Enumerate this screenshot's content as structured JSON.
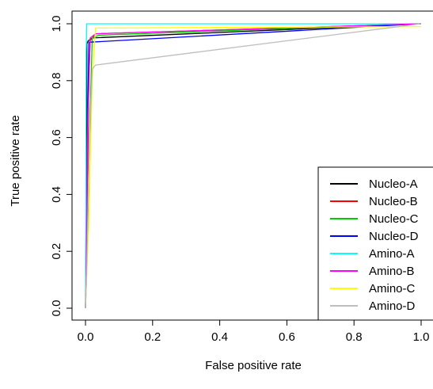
{
  "chart_data": {
    "type": "line",
    "title": "",
    "xlabel": "False positive rate",
    "ylabel": "True positive rate",
    "xlim": [
      0,
      1
    ],
    "ylim": [
      0,
      1
    ],
    "xticks": [
      "0.0",
      "0.2",
      "0.4",
      "0.6",
      "0.8",
      "1.0"
    ],
    "yticks": [
      "0.0",
      "0.2",
      "0.4",
      "0.6",
      "0.8",
      "1.0"
    ],
    "grid": false,
    "legend_position": "bottom-right",
    "series": [
      {
        "name": "Nucleo-A",
        "color": "#000000",
        "x": [
          0,
          0.002,
          0.004,
          0.004,
          0.008,
          0.02,
          1.0
        ],
        "y": [
          0,
          0.3,
          0.71,
          0.93,
          0.94,
          0.95,
          1.0
        ]
      },
      {
        "name": "Nucleo-B",
        "color": "#ff0000",
        "x": [
          0,
          0.006,
          0.01,
          0.014,
          0.03,
          1.0
        ],
        "y": [
          0,
          0.4,
          0.8,
          0.94,
          0.965,
          1.0
        ]
      },
      {
        "name": "Nucleo-C",
        "color": "#00cd00",
        "x": [
          0,
          0.006,
          0.01,
          0.02,
          0.04,
          1.0
        ],
        "y": [
          0,
          0.2,
          0.5,
          0.95,
          0.96,
          1.0
        ]
      },
      {
        "name": "Nucleo-D",
        "color": "#0000ff",
        "x": [
          0,
          0.002,
          0.004,
          0.01,
          1.0
        ],
        "y": [
          0,
          0.2,
          0.43,
          0.935,
          1.0
        ]
      },
      {
        "name": "Amino-A",
        "color": "#00ffff",
        "x": [
          0,
          0.001,
          0.002,
          0.004,
          1.0
        ],
        "y": [
          0,
          0.3,
          0.9,
          1.0,
          1.0
        ]
      },
      {
        "name": "Amino-B",
        "color": "#ff00ff",
        "x": [
          0,
          0.002,
          0.006,
          0.014,
          0.03,
          1.0
        ],
        "y": [
          0,
          0.1,
          0.6,
          0.95,
          0.965,
          1.0
        ]
      },
      {
        "name": "Amino-C",
        "color": "#ffff00",
        "x": [
          0,
          0.01,
          0.02,
          0.03,
          1.0
        ],
        "y": [
          0,
          0.3,
          0.8,
          0.985,
          0.99
        ]
      },
      {
        "name": "Amino-D",
        "color": "#bebebe",
        "x": [
          0,
          0.004,
          0.01,
          0.02,
          0.03,
          1.0
        ],
        "y": [
          0,
          0.15,
          0.5,
          0.84,
          0.855,
          1.0
        ]
      }
    ]
  }
}
